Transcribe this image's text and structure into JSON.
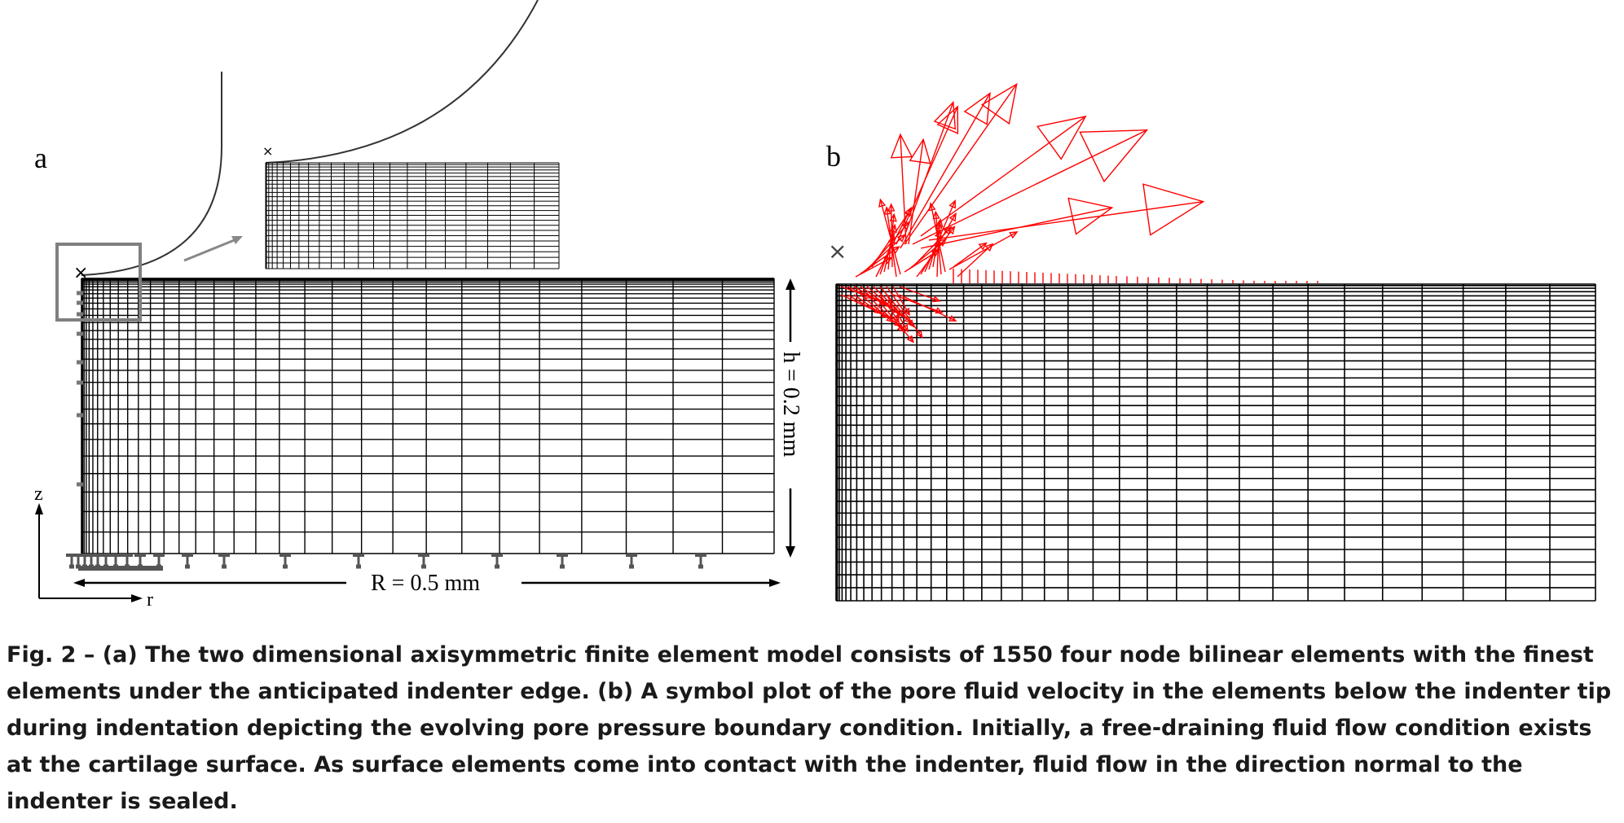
{
  "figure": {
    "panel_a": {
      "label": "a",
      "z_axis_label": "z",
      "r_axis_label": "r",
      "height_annotation": "h = 0.2 mm",
      "radius_annotation": "R = 0.5 mm"
    },
    "panel_b": {
      "label": "b"
    },
    "colors": {
      "mesh": "#000000",
      "velocity_arrows": "#ff0000",
      "inset_box": "#808080"
    }
  },
  "caption": {
    "text": "Fig. 2 – (a) The two dimensional axisymmetric finite element model consists of 1550 four node bilinear elements with the finest elements under the anticipated indenter edge. (b) A symbol plot of the pore fluid velocity in the elements below the indenter tip during indentation depicting the evolving pore pressure boundary condition. Initially, a free-draining fluid flow condition exists at the cartilage surface. As surface elements come into contact with the indenter, fluid flow in the direction normal to the indenter is sealed."
  }
}
